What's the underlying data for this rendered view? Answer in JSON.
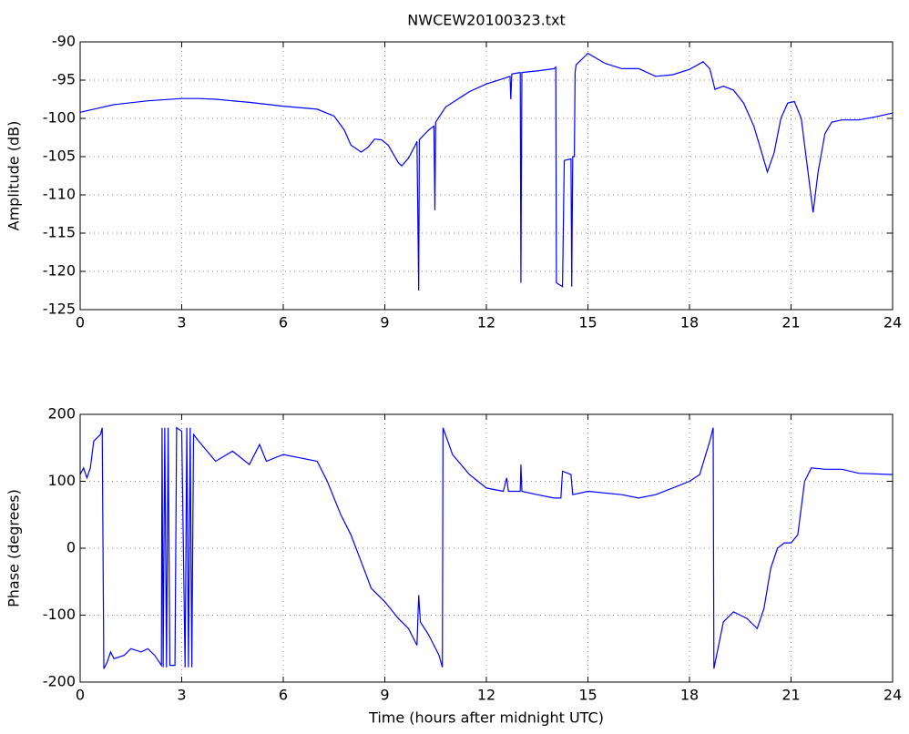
{
  "chart_data": [
    {
      "type": "line",
      "title": "NWCEW20100323.txt",
      "y_label": "Amplitude (dB)",
      "color": "#0000ff",
      "grid": true,
      "xlim": [
        0,
        24
      ],
      "xticks": [
        0,
        3,
        6,
        9,
        12,
        15,
        18,
        21,
        24
      ],
      "ylim": [
        -125,
        -90
      ],
      "yticks": [
        -125,
        -120,
        -115,
        -110,
        -105,
        -100,
        -95,
        -90
      ],
      "x": [
        0,
        0.5,
        1,
        2,
        3,
        3.5,
        4,
        5,
        6,
        7,
        7.5,
        7.8,
        8.0,
        8.3,
        8.5,
        8.7,
        8.9,
        9.1,
        9.4,
        9.5,
        9.7,
        9.9,
        9.95,
        10.0,
        10.02,
        10.3,
        10.45,
        10.48,
        10.5,
        10.8,
        11.5,
        12.0,
        12.5,
        12.7,
        12.72,
        12.75,
        13.0,
        13.02,
        13.05,
        13.5,
        14.0,
        14.05,
        14.07,
        14.25,
        14.3,
        14.5,
        14.52,
        14.55,
        14.6,
        14.62,
        14.65,
        15.0,
        15.5,
        16,
        16.5,
        17,
        17.5,
        18,
        18.4,
        18.6,
        18.75,
        19.0,
        19.3,
        19.6,
        19.9,
        20.1,
        20.3,
        20.5,
        20.7,
        20.9,
        21.1,
        21.3,
        21.5,
        21.65,
        21.8,
        22.0,
        22.2,
        22.5,
        23,
        23.5,
        24
      ],
      "values": [
        -99.2,
        -98.7,
        -98.2,
        -97.7,
        -97.4,
        -97.4,
        -97.5,
        -97.9,
        -98.4,
        -98.8,
        -99.7,
        -101.5,
        -103.5,
        -104.4,
        -103.8,
        -102.7,
        -102.8,
        -103.5,
        -105.8,
        -106.2,
        -105.2,
        -103.5,
        -103,
        -122.5,
        -102.8,
        -101.5,
        -101,
        -112,
        -100.5,
        -98.5,
        -96.5,
        -95.5,
        -94.8,
        -94.5,
        -97.5,
        -94.2,
        -94,
        -121.5,
        -94,
        -93.8,
        -93.5,
        -93.3,
        -121.5,
        -122,
        -105.5,
        -105.3,
        -122,
        -105,
        -105,
        -94,
        -93,
        -91.5,
        -92.8,
        -93.5,
        -93.5,
        -94.5,
        -94.3,
        -93.6,
        -92.6,
        -93.5,
        -96.2,
        -95.8,
        -96.3,
        -98,
        -101,
        -104,
        -107,
        -104.5,
        -100,
        -98,
        -97.8,
        -100,
        -107,
        -112.3,
        -107,
        -102,
        -100.5,
        -100.2,
        -100.2,
        -99.8,
        -99.3
      ]
    },
    {
      "type": "line",
      "x_label": "Time (hours after midnight UTC)",
      "y_label": "Phase (degrees)",
      "color": "#0000ff",
      "grid": true,
      "xlim": [
        0,
        24
      ],
      "xticks": [
        0,
        3,
        6,
        9,
        12,
        15,
        18,
        21,
        24
      ],
      "ylim": [
        -200,
        200
      ],
      "yticks": [
        -200,
        -100,
        0,
        100,
        200
      ],
      "x": [
        0,
        0.1,
        0.2,
        0.3,
        0.4,
        0.6,
        0.65,
        0.7,
        0.8,
        0.9,
        1.0,
        1.3,
        1.5,
        1.8,
        2.0,
        2.2,
        2.4,
        2.42,
        2.45,
        2.5,
        2.55,
        2.6,
        2.65,
        2.8,
        2.85,
        3.0,
        3.1,
        3.15,
        3.2,
        3.25,
        3.3,
        3.35,
        3.5,
        4.0,
        4.5,
        5.0,
        5.3,
        5.5,
        6.0,
        6.5,
        7.0,
        7.3,
        7.7,
        8.0,
        8.3,
        8.6,
        9.0,
        9.4,
        9.7,
        9.95,
        10.0,
        10.05,
        10.3,
        10.6,
        10.7,
        10.72,
        11.0,
        11.5,
        12.0,
        12.5,
        12.6,
        12.65,
        13.0,
        13.02,
        13.05,
        13.5,
        14.0,
        14.2,
        14.25,
        14.5,
        14.55,
        15.0,
        16.0,
        16.5,
        17.0,
        17.5,
        18.0,
        18.3,
        18.6,
        18.7,
        18.72,
        19.0,
        19.3,
        19.7,
        20.0,
        20.2,
        20.4,
        20.6,
        20.8,
        21.0,
        21.2,
        21.4,
        21.6,
        22.0,
        22.5,
        23,
        24
      ],
      "values": [
        110,
        120,
        105,
        120,
        160,
        170,
        180,
        -180,
        -170,
        -155,
        -165,
        -160,
        -150,
        -155,
        -150,
        -160,
        -175,
        180,
        -178,
        180,
        -178,
        180,
        -175,
        -175,
        180,
        175,
        -178,
        180,
        -178,
        180,
        -178,
        170,
        160,
        130,
        145,
        125,
        155,
        130,
        140,
        135,
        130,
        100,
        50,
        20,
        -20,
        -60,
        -80,
        -105,
        -120,
        -145,
        -70,
        -110,
        -130,
        -160,
        -178,
        180,
        140,
        110,
        90,
        85,
        105,
        85,
        85,
        125,
        85,
        80,
        75,
        75,
        115,
        110,
        80,
        85,
        80,
        75,
        80,
        90,
        100,
        110,
        160,
        180,
        -180,
        -110,
        -95,
        -105,
        -120,
        -90,
        -30,
        0,
        8,
        8,
        20,
        100,
        120,
        118,
        118,
        112,
        110
      ]
    }
  ]
}
